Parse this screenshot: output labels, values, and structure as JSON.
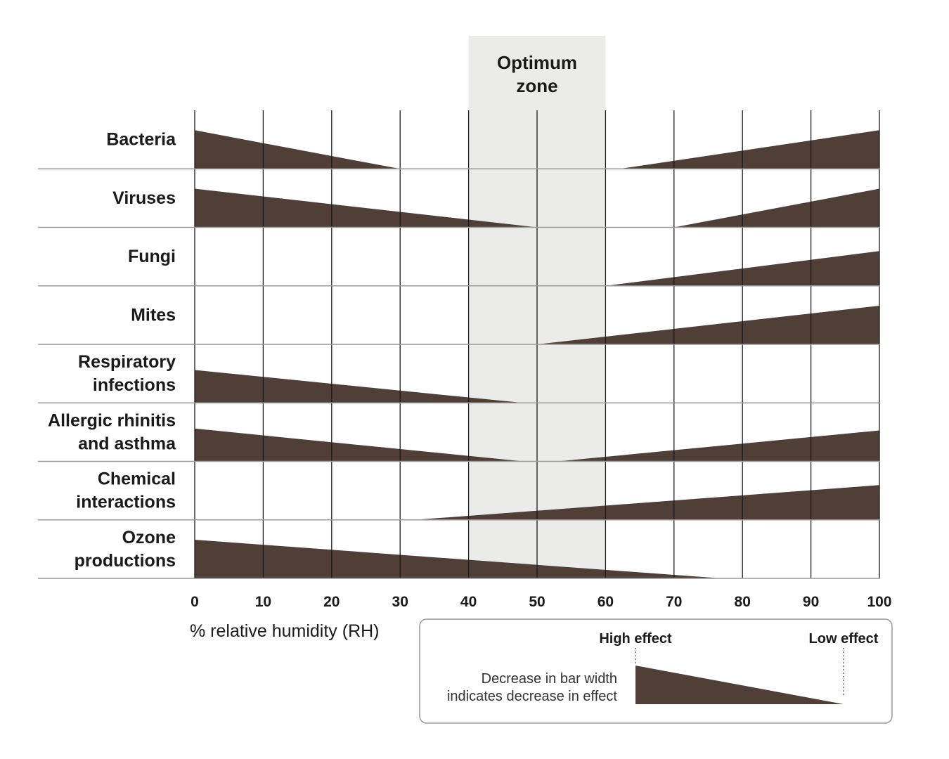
{
  "chart_data": {
    "type": "area",
    "title": "",
    "xlabel": "% relative humidity (RH)",
    "ylabel": "",
    "xlim": [
      0,
      100
    ],
    "x_ticks": [
      0,
      10,
      20,
      30,
      40,
      50,
      60,
      70,
      80,
      90,
      100
    ],
    "grid": true,
    "optimum_zone": {
      "label_lines": [
        "Optimum",
        "zone"
      ],
      "range": [
        40,
        60
      ],
      "color": "#ebebe9"
    },
    "bar_color": "#4f3f37",
    "effect_scale": "max bar width = high effect, zero width = low effect",
    "rows": [
      {
        "label_lines": [
          "Bacteria"
        ],
        "segments": [
          {
            "from": 0,
            "to": 30,
            "start": 1.0,
            "end": 0.0
          },
          {
            "from": 62,
            "to": 100,
            "start": 0.0,
            "end": 1.0
          }
        ]
      },
      {
        "label_lines": [
          "Viruses"
        ],
        "segments": [
          {
            "from": 0,
            "to": 50,
            "start": 1.0,
            "end": 0.0
          },
          {
            "from": 70,
            "to": 100,
            "start": 0.0,
            "end": 1.0
          }
        ]
      },
      {
        "label_lines": [
          "Fungi"
        ],
        "segments": [
          {
            "from": 60,
            "to": 100,
            "start": 0.0,
            "end": 0.9
          }
        ]
      },
      {
        "label_lines": [
          "Mites"
        ],
        "segments": [
          {
            "from": 50,
            "to": 100,
            "start": 0.0,
            "end": 1.0
          }
        ]
      },
      {
        "label_lines": [
          "Respiratory",
          "infections"
        ],
        "segments": [
          {
            "from": 0,
            "to": 48,
            "start": 0.85,
            "end": 0.0
          }
        ]
      },
      {
        "label_lines": [
          "Allergic rhinitis",
          "and asthma"
        ],
        "segments": [
          {
            "from": 0,
            "to": 48,
            "start": 0.85,
            "end": 0.0
          },
          {
            "from": 53,
            "to": 100,
            "start": 0.0,
            "end": 0.8
          }
        ]
      },
      {
        "label_lines": [
          "Chemical",
          "interactions"
        ],
        "segments": [
          {
            "from": 32,
            "to": 100,
            "start": 0.0,
            "end": 0.9
          }
        ]
      },
      {
        "label_lines": [
          "Ozone",
          "productions"
        ],
        "segments": [
          {
            "from": 0,
            "to": 77,
            "start": 1.0,
            "end": 0.0
          }
        ]
      }
    ],
    "legend": {
      "high_label": "High effect",
      "low_label": "Low effect",
      "description_lines": [
        "Decrease in bar width",
        "indicates decrease in effect"
      ],
      "placement": "bottom-right"
    }
  }
}
